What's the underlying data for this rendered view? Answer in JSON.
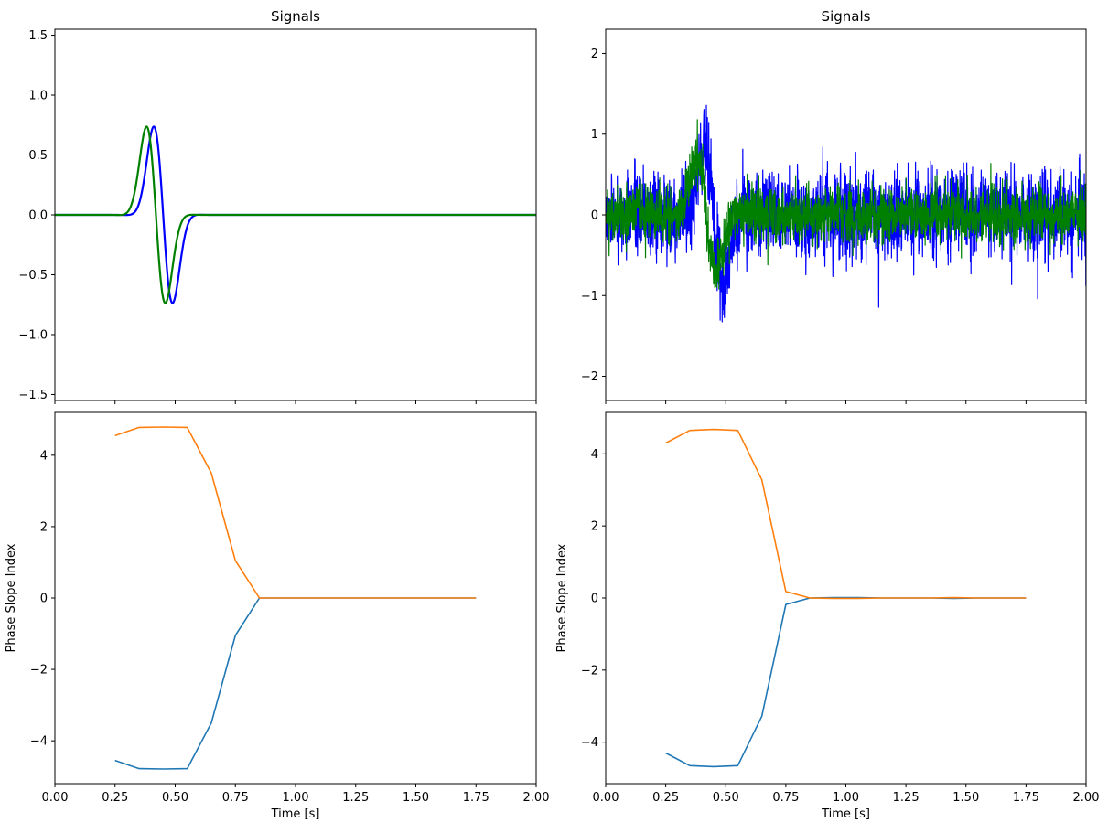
{
  "chart_data": [
    {
      "panel": "top-left",
      "type": "line",
      "title": "Signals",
      "xlabel": "",
      "ylabel": "",
      "xlim": [
        0,
        2
      ],
      "ylim": [
        -1.55,
        1.55
      ],
      "x_ticks": [
        0,
        0.25,
        0.5,
        0.75,
        1,
        1.25,
        1.5,
        1.75,
        2
      ],
      "x_tick_labels_visible": false,
      "y_ticks": [
        -1.5,
        -1.0,
        -0.5,
        0.0,
        0.5,
        1.0,
        1.5
      ],
      "y_tick_labels": [
        "−1.5",
        "−1.0",
        "−0.5",
        "0.0",
        "0.5",
        "1.0",
        "1.5"
      ],
      "series": [
        {
          "color": "#0000ff",
          "waveform": "wavelet",
          "center": 0.45,
          "sigma": 0.045,
          "amplitude": 1.42,
          "freq": 3.5,
          "noise": 0
        },
        {
          "color": "#008000",
          "waveform": "wavelet",
          "center": 0.42,
          "sigma": 0.045,
          "amplitude": 1.42,
          "freq": 3.5,
          "noise": 0
        }
      ]
    },
    {
      "panel": "top-right",
      "type": "line",
      "title": "Signals",
      "xlabel": "",
      "ylabel": "",
      "xlim": [
        0,
        2
      ],
      "ylim": [
        -2.3,
        2.3
      ],
      "x_ticks": [
        0,
        0.25,
        0.5,
        0.75,
        1,
        1.25,
        1.5,
        1.75,
        2
      ],
      "x_tick_labels_visible": false,
      "y_ticks": [
        -2,
        -1,
        0,
        1,
        2
      ],
      "y_tick_labels": [
        "−2",
        "−1",
        "0",
        "1",
        "2"
      ],
      "series": [
        {
          "color": "#0000ff",
          "waveform": "wavelet",
          "center": 0.45,
          "sigma": 0.045,
          "amplitude": 1.55,
          "freq": 3.5,
          "noise": 0.52
        },
        {
          "color": "#008000",
          "waveform": "wavelet",
          "center": 0.42,
          "sigma": 0.045,
          "amplitude": 1.4,
          "freq": 3.5,
          "noise": 0.33
        }
      ]
    },
    {
      "panel": "bottom-left",
      "type": "line",
      "title": "",
      "xlabel": "Time [s]",
      "ylabel": "Phase Slope Index",
      "xlim": [
        0,
        2
      ],
      "ylim": [
        -5.2,
        5.2
      ],
      "x_ticks": [
        0,
        0.25,
        0.5,
        0.75,
        1,
        1.25,
        1.5,
        1.75,
        2
      ],
      "x_tick_labels": [
        "0.00",
        "0.25",
        "0.50",
        "0.75",
        "1.00",
        "1.25",
        "1.50",
        "1.75",
        "2.00"
      ],
      "x_tick_labels_visible": true,
      "y_ticks": [
        -4,
        -2,
        0,
        2,
        4
      ],
      "y_tick_labels": [
        "−4",
        "−2",
        "0",
        "2",
        "4"
      ],
      "x": [
        0.25,
        0.35,
        0.45,
        0.55,
        0.65,
        0.75,
        0.85,
        0.95,
        1.05,
        1.15,
        1.25,
        1.35,
        1.45,
        1.55,
        1.65,
        1.75
      ],
      "series": [
        {
          "color": "#1f77b4",
          "values": [
            -4.55,
            -4.78,
            -4.79,
            -4.78,
            -3.5,
            -1.05,
            0,
            0,
            0,
            0,
            0,
            0,
            0,
            0,
            0,
            0
          ]
        },
        {
          "color": "#ff7f0e",
          "values": [
            4.55,
            4.78,
            4.79,
            4.78,
            3.5,
            1.05,
            0,
            0,
            0,
            0,
            0,
            0,
            0,
            0,
            0,
            0
          ]
        }
      ]
    },
    {
      "panel": "bottom-right",
      "type": "line",
      "title": "",
      "xlabel": "Time [s]",
      "ylabel": "Phase Slope Index",
      "xlim": [
        0,
        2
      ],
      "ylim": [
        -5.15,
        5.15
      ],
      "x_ticks": [
        0,
        0.25,
        0.5,
        0.75,
        1,
        1.25,
        1.5,
        1.75,
        2
      ],
      "x_tick_labels": [
        "0.00",
        "0.25",
        "0.50",
        "0.75",
        "1.00",
        "1.25",
        "1.50",
        "1.75",
        "2.00"
      ],
      "x_tick_labels_visible": true,
      "y_ticks": [
        -4,
        -2,
        0,
        2,
        4
      ],
      "y_tick_labels": [
        "−4",
        "−2",
        "0",
        "2",
        "4"
      ],
      "x": [
        0.25,
        0.35,
        0.45,
        0.55,
        0.65,
        0.75,
        0.85,
        0.95,
        1.05,
        1.15,
        1.25,
        1.35,
        1.45,
        1.55,
        1.65,
        1.75
      ],
      "series": [
        {
          "color": "#1f77b4",
          "values": [
            -4.3,
            -4.65,
            -4.68,
            -4.65,
            -3.28,
            -0.18,
            0.0,
            0.01,
            0.01,
            0.0,
            0.0,
            0.0,
            -0.01,
            0.0,
            0.0,
            0.0
          ]
        },
        {
          "color": "#ff7f0e",
          "values": [
            4.3,
            4.65,
            4.68,
            4.65,
            3.28,
            0.18,
            0.0,
            -0.01,
            -0.01,
            0.0,
            0.0,
            0.0,
            0.01,
            0.0,
            0.0,
            0.0
          ]
        }
      ]
    }
  ]
}
